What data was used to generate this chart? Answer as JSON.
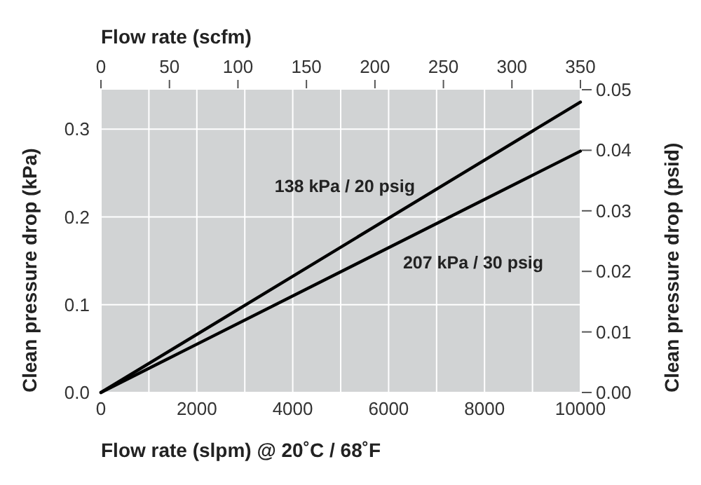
{
  "chart_data": {
    "type": "line",
    "xlabel": "Flow rate (slpm) @ 20˚C / 68˚F",
    "x2label": "Flow rate (scfm)",
    "ylabel": "Clean pressure drop (kPa)",
    "y2label": "Clean pressure drop (psid)",
    "x": [
      0,
      10000
    ],
    "series": [
      {
        "name": "138 kPa / 20 psig",
        "color": "#000000",
        "values": [
          0,
          0.331
        ]
      },
      {
        "name": "207 kPa / 30 psig",
        "color": "#000000",
        "values": [
          0,
          0.275
        ]
      }
    ],
    "xlim": [
      0,
      10000
    ],
    "xticks": [
      0,
      {
        "value": 1000,
        "label": null
      },
      2000,
      {
        "value": 3000,
        "label": null
      },
      4000,
      {
        "value": 5000,
        "label": null
      },
      6000,
      {
        "value": 7000,
        "label": null
      },
      8000,
      {
        "value": 9000,
        "label": null
      },
      10000
    ],
    "x2lim": [
      0,
      350
    ],
    "x2ticks": [
      0,
      50,
      100,
      150,
      200,
      250,
      300,
      350
    ],
    "ylim": [
      0,
      0.345
    ],
    "yticks": [
      {
        "value": 0,
        "label": "0.0"
      },
      0.1,
      0.2,
      0.3
    ],
    "y2lim": [
      0,
      0.05
    ],
    "y2ticks": [
      {
        "value": 0,
        "label": "0.00"
      },
      0.01,
      0.02,
      0.03,
      0.04,
      0.05
    ],
    "grid": true,
    "marker": "none",
    "line_style": "solid"
  }
}
